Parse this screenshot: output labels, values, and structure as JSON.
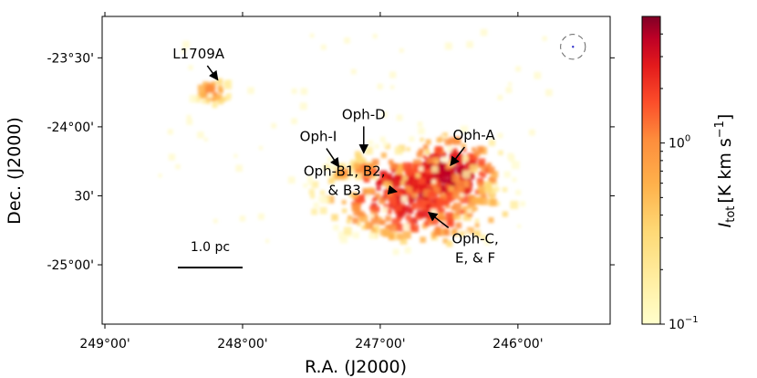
{
  "chart_data": {
    "type": "heatmap",
    "title": "",
    "xlabel": "R.A. (J2000)",
    "ylabel": "Dec. (J2000)",
    "x_ticks": [
      {
        "deg": 249.0,
        "label": "249°00'"
      },
      {
        "deg": 248.0,
        "label": "248°00'"
      },
      {
        "deg": 247.0,
        "label": "247°00'"
      },
      {
        "deg": 246.0,
        "label": "246°00'"
      }
    ],
    "y_ticks": [
      {
        "deg": -23.5,
        "label": "-23°30'"
      },
      {
        "deg": -24.0,
        "label": "-24°00'"
      },
      {
        "deg": -24.5,
        "label": "30'"
      },
      {
        "deg": -25.0,
        "label": "-25°00'"
      }
    ],
    "xlim": [
      249.02,
      245.33
    ],
    "ylim": [
      -25.43,
      -23.2
    ],
    "colorbar": {
      "label": "I_tot [K km s^-1]",
      "label_main": "I",
      "label_sub": "tot",
      "label_bracket_open": "[K km s",
      "label_sup": "−1",
      "label_bracket_close": "]",
      "scale": "log",
      "range": [
        0.1,
        5
      ],
      "colormap": "YlOrRd",
      "ticks": [
        {
          "value": 0.1,
          "label": "10",
          "sup": "−1"
        },
        {
          "value": 1.0,
          "label": "10",
          "sup": "0"
        }
      ]
    },
    "annotations": [
      {
        "text": "L1709A",
        "tx": 248.32,
        "ty": -23.47,
        "ax": 248.18,
        "ay": -23.66
      },
      {
        "text": "Oph-D",
        "tx": 247.12,
        "ty": -23.91,
        "ax": 247.12,
        "ay": -24.19
      },
      {
        "text": "Oph-I",
        "tx": 247.45,
        "ty": -24.07,
        "ax": 247.3,
        "ay": -24.29
      },
      {
        "text": "Oph-A",
        "tx": 246.32,
        "ty": -24.06,
        "ax": 246.49,
        "ay": -24.28
      },
      {
        "text_lines": [
          "Oph-B1, B2,",
          "& B3"
        ],
        "tx": 247.26,
        "ty": -24.39,
        "ax": 246.88,
        "ay": -24.47
      },
      {
        "text_lines": [
          "Oph-C,",
          "E, & F"
        ],
        "tx": 246.31,
        "ty": -24.88,
        "ax": 246.65,
        "ay": -24.62
      }
    ],
    "scalebar": {
      "label": "1.0 pc",
      "x_start": 248.47,
      "x_end": 248.0,
      "y": -25.02
    },
    "beam": {
      "ra": 245.6,
      "dec": -23.42,
      "diameter_deg": 0.18
    },
    "emission": [
      {
        "name": "L1709A",
        "ra": 248.22,
        "dec": -23.74,
        "peak": 1.3
      },
      {
        "name": "Oph-D",
        "ra": 247.13,
        "dec": -24.3,
        "peak": 1.6
      },
      {
        "name": "Oph-I",
        "ra": 247.28,
        "dec": -24.33,
        "peak": 1.2
      },
      {
        "name": "Oph-A",
        "ra": 246.5,
        "dec": -24.35,
        "peak": 5.0
      },
      {
        "name": "Oph-B",
        "ra": 246.82,
        "dec": -24.46,
        "peak": 4.0
      },
      {
        "name": "Oph-C/E/F",
        "ra": 246.72,
        "dec": -24.6,
        "peak": 2.5
      }
    ],
    "grid": false,
    "legend": "none"
  }
}
